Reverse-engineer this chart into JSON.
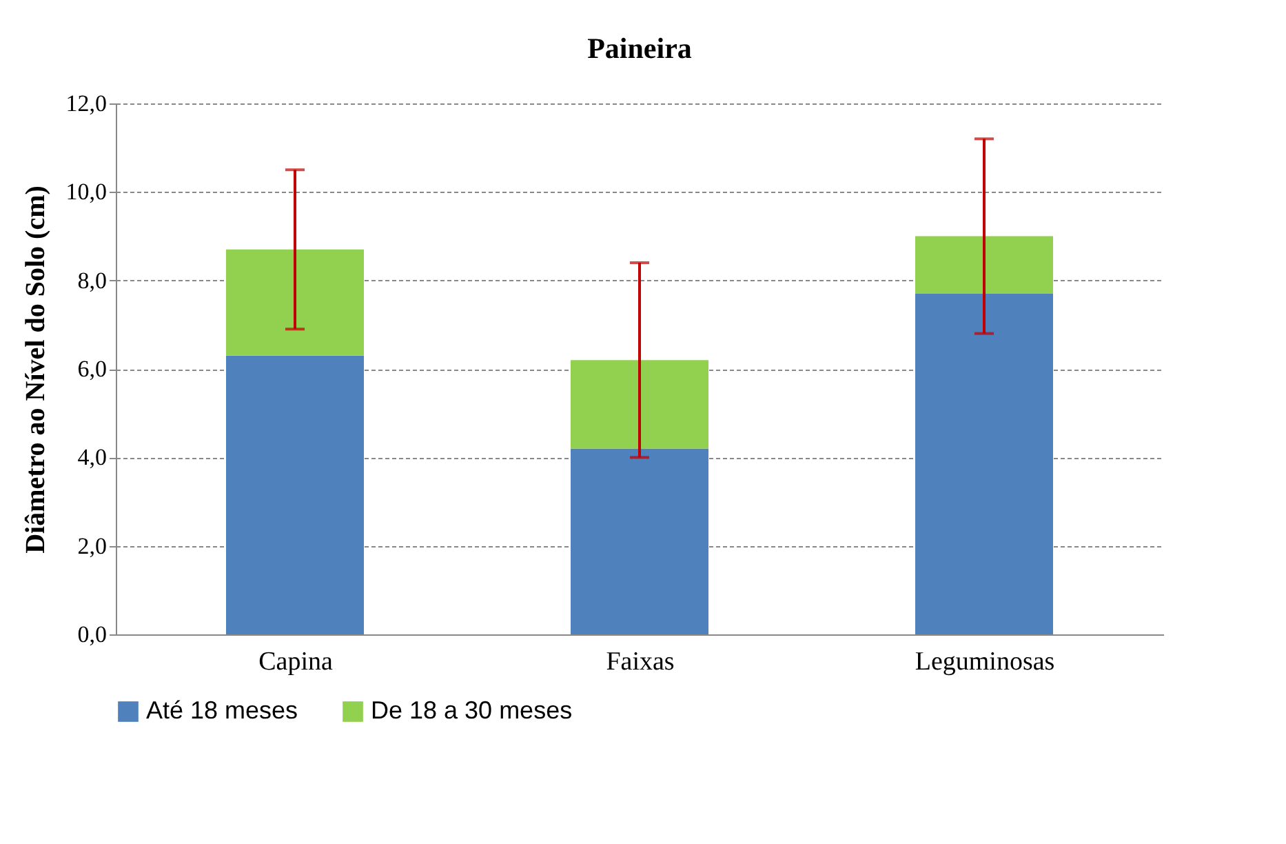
{
  "chart_data": {
    "type": "bar",
    "title": "Paineira",
    "ylabel": "Diâmetro ao Nível do Solo (cm)",
    "categories": [
      "Capina",
      "Faixas",
      "Leguminosas"
    ],
    "stacked": true,
    "series": [
      {
        "name": "Até 18 meses",
        "color": "#4f81bd",
        "values": [
          6.3,
          4.2,
          7.7
        ]
      },
      {
        "name": "De 18 a 30 meses",
        "color": "#92d050",
        "values": [
          2.4,
          2.0,
          1.3
        ],
        "errors": [
          [
            6.9,
            10.5
          ],
          [
            4.0,
            8.4
          ],
          [
            6.8,
            11.2
          ]
        ]
      }
    ],
    "ylim": [
      0,
      12
    ],
    "yticks": [
      {
        "value": 0,
        "label": "0,0"
      },
      {
        "value": 2,
        "label": "2,0"
      },
      {
        "value": 4,
        "label": "4,0"
      },
      {
        "value": 6,
        "label": "6,0"
      },
      {
        "value": 8,
        "label": "8,0"
      },
      {
        "value": 10,
        "label": "10,0"
      },
      {
        "value": 12,
        "label": "12,0"
      }
    ],
    "grid": "y",
    "legend": "bottom"
  }
}
